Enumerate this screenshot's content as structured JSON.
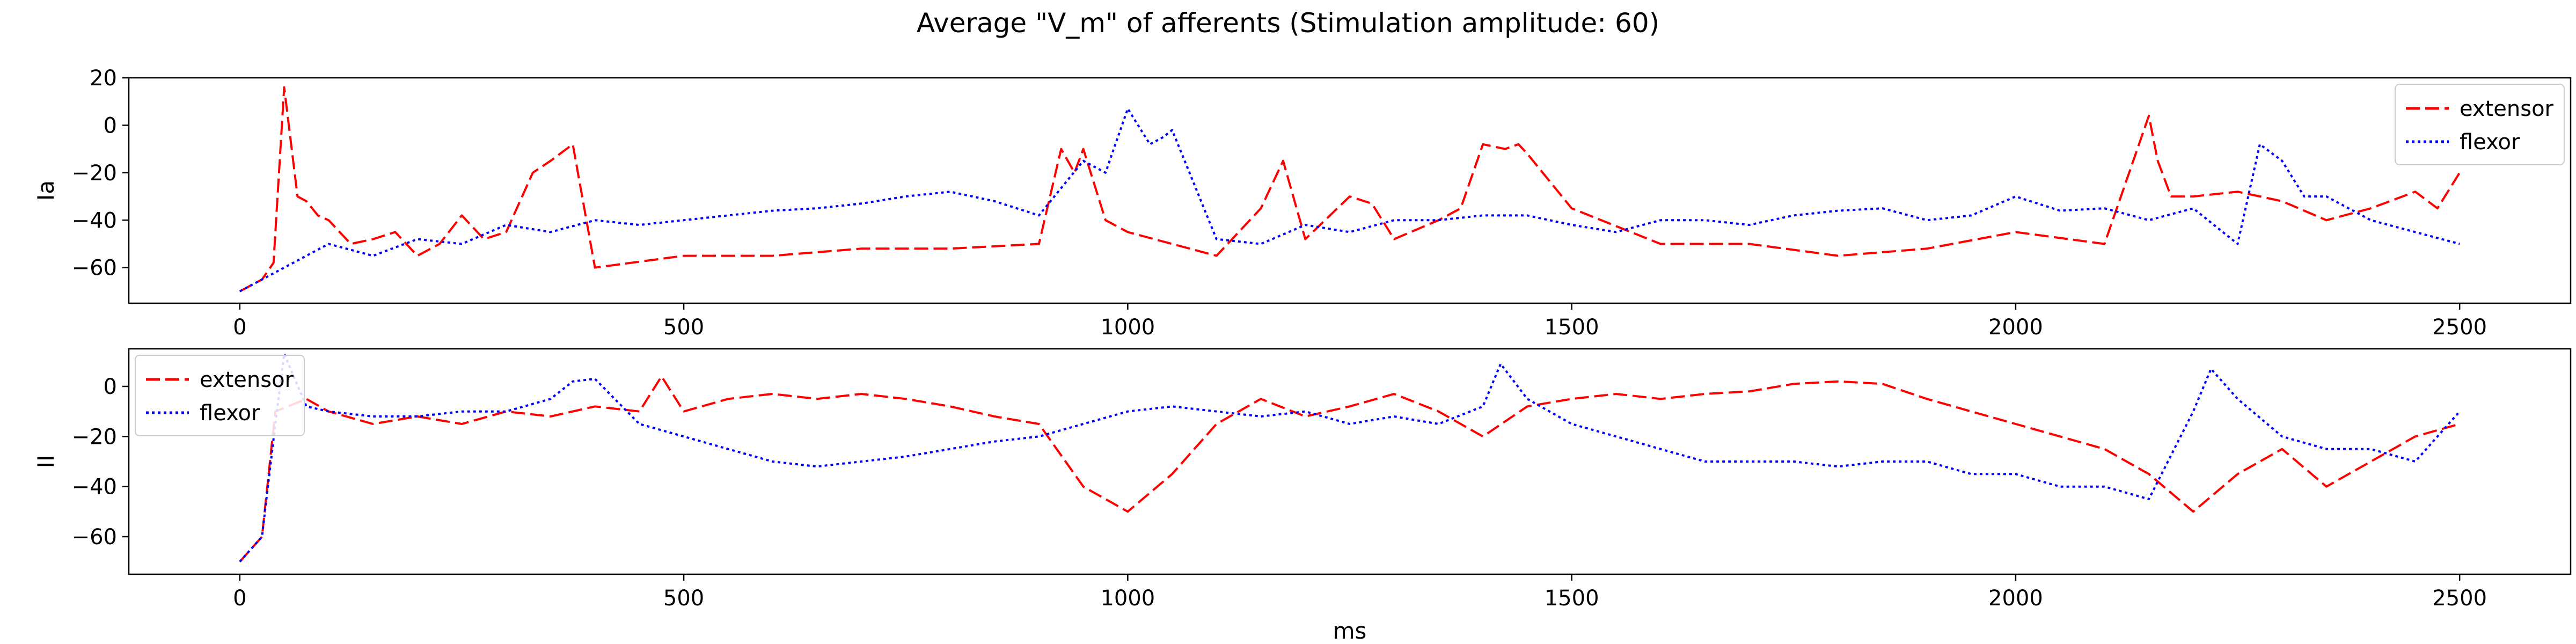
{
  "figure": {
    "title": "Average \"V_m\" of afferents (Stimulation amplitude: 60)",
    "xlabel": "ms"
  },
  "colors": {
    "extensor": "#ff0000",
    "flexor": "#0000ff"
  },
  "chart_data": [
    {
      "type": "line",
      "ylabel": "Ia",
      "xlim": [
        -125,
        2625
      ],
      "ylim": [
        -75,
        20
      ],
      "xticks": [
        0,
        500,
        1000,
        1500,
        2000,
        2500
      ],
      "xtick_labels": [
        "0",
        "500",
        "1000",
        "1500",
        "2000",
        "2500"
      ],
      "yticks": [
        20,
        0,
        -20,
        -40,
        -60
      ],
      "ytick_labels": [
        "20",
        "0",
        "−20",
        "−40",
        "−60"
      ],
      "grid": false,
      "legend": {
        "placement": "top-right",
        "entries": [
          "extensor",
          "flexor"
        ]
      },
      "series": [
        {
          "name": "extensor",
          "style": "dashed",
          "x": [
            0,
            25,
            38,
            50,
            65,
            75,
            88,
            100,
            125,
            150,
            175,
            200,
            225,
            250,
            275,
            300,
            330,
            350,
            375,
            400,
            500,
            600,
            700,
            800,
            900,
            925,
            940,
            950,
            975,
            1000,
            1050,
            1100,
            1150,
            1175,
            1200,
            1250,
            1275,
            1300,
            1350,
            1375,
            1400,
            1425,
            1440,
            1450,
            1500,
            1600,
            1700,
            1800,
            1900,
            2000,
            2100,
            2150,
            2160,
            2175,
            2200,
            2250,
            2300,
            2350,
            2400,
            2450,
            2475,
            2500
          ],
          "y": [
            -70,
            -65,
            -58,
            16,
            -30,
            -32,
            -38,
            -40,
            -50,
            -48,
            -45,
            -55,
            -50,
            -38,
            -48,
            -45,
            -20,
            -15,
            -8,
            -60,
            -55,
            -55,
            -52,
            -52,
            -50,
            -10,
            -20,
            -10,
            -40,
            -45,
            -50,
            -55,
            -35,
            -15,
            -48,
            -30,
            -33,
            -48,
            -40,
            -35,
            -8,
            -10,
            -8,
            -12,
            -35,
            -50,
            -50,
            -55,
            -52,
            -45,
            -50,
            4,
            -15,
            -30,
            -30,
            -28,
            -32,
            -40,
            -35,
            -28,
            -35,
            -20
          ]
        },
        {
          "name": "flexor",
          "style": "dotted",
          "x": [
            0,
            50,
            100,
            150,
            200,
            250,
            300,
            350,
            400,
            450,
            500,
            550,
            600,
            650,
            700,
            750,
            800,
            850,
            900,
            950,
            975,
            1000,
            1025,
            1040,
            1050,
            1100,
            1150,
            1200,
            1250,
            1300,
            1350,
            1400,
            1450,
            1500,
            1550,
            1600,
            1650,
            1700,
            1750,
            1800,
            1850,
            1900,
            1950,
            2000,
            2050,
            2100,
            2150,
            2200,
            2250,
            2275,
            2300,
            2325,
            2350,
            2400,
            2450,
            2500
          ],
          "y": [
            -70,
            -60,
            -50,
            -55,
            -48,
            -50,
            -42,
            -45,
            -40,
            -42,
            -40,
            -38,
            -36,
            -35,
            -33,
            -30,
            -28,
            -32,
            -38,
            -15,
            -20,
            7,
            -8,
            -5,
            -2,
            -48,
            -50,
            -42,
            -45,
            -40,
            -40,
            -38,
            -38,
            -42,
            -45,
            -40,
            -40,
            -42,
            -38,
            -36,
            -35,
            -40,
            -38,
            -30,
            -36,
            -35,
            -40,
            -35,
            -50,
            -8,
            -15,
            -30,
            -30,
            -40,
            -45,
            -50
          ]
        }
      ]
    },
    {
      "type": "line",
      "ylabel": "II",
      "xlim": [
        -125,
        2625
      ],
      "ylim": [
        -75,
        15
      ],
      "xticks": [
        0,
        500,
        1000,
        1500,
        2000,
        2500
      ],
      "xtick_labels": [
        "0",
        "500",
        "1000",
        "1500",
        "2000",
        "2500"
      ],
      "yticks": [
        0,
        -20,
        -40,
        -60
      ],
      "ytick_labels": [
        "0",
        "−20",
        "−40",
        "−60"
      ],
      "grid": false,
      "legend": {
        "placement": "top-left",
        "entries": [
          "extensor",
          "flexor"
        ]
      },
      "series": [
        {
          "name": "extensor",
          "style": "dashed",
          "x": [
            0,
            25,
            40,
            75,
            100,
            150,
            200,
            250,
            300,
            350,
            400,
            450,
            475,
            500,
            550,
            600,
            650,
            700,
            750,
            800,
            850,
            900,
            950,
            1000,
            1050,
            1100,
            1150,
            1200,
            1250,
            1300,
            1350,
            1400,
            1450,
            1500,
            1550,
            1600,
            1650,
            1700,
            1750,
            1800,
            1850,
            1900,
            1950,
            2000,
            2050,
            2100,
            2150,
            2200,
            2250,
            2300,
            2350,
            2400,
            2450,
            2500
          ],
          "y": [
            -70,
            -60,
            -10,
            -5,
            -10,
            -15,
            -12,
            -15,
            -10,
            -12,
            -8,
            -10,
            4,
            -10,
            -5,
            -3,
            -5,
            -3,
            -5,
            -8,
            -12,
            -15,
            -40,
            -50,
            -35,
            -15,
            -5,
            -12,
            -8,
            -3,
            -10,
            -20,
            -8,
            -5,
            -3,
            -5,
            -3,
            -2,
            1,
            2,
            1,
            -5,
            -10,
            -15,
            -20,
            -25,
            -35,
            -50,
            -35,
            -25,
            -40,
            -30,
            -20,
            -15
          ]
        },
        {
          "name": "flexor",
          "style": "dotted",
          "x": [
            0,
            25,
            40,
            50,
            75,
            100,
            150,
            200,
            250,
            300,
            350,
            375,
            400,
            450,
            500,
            550,
            600,
            650,
            700,
            750,
            800,
            850,
            900,
            950,
            1000,
            1050,
            1100,
            1150,
            1200,
            1250,
            1300,
            1350,
            1400,
            1420,
            1450,
            1500,
            1550,
            1600,
            1650,
            1700,
            1750,
            1800,
            1850,
            1900,
            1950,
            2000,
            2050,
            2100,
            2150,
            2200,
            2220,
            2250,
            2300,
            2350,
            2400,
            2450,
            2500
          ],
          "y": [
            -70,
            -60,
            -15,
            13,
            -8,
            -10,
            -12,
            -12,
            -10,
            -10,
            -5,
            2,
            3,
            -15,
            -20,
            -25,
            -30,
            -32,
            -30,
            -28,
            -25,
            -22,
            -20,
            -15,
            -10,
            -8,
            -10,
            -12,
            -10,
            -15,
            -12,
            -15,
            -8,
            9,
            -5,
            -15,
            -20,
            -25,
            -30,
            -30,
            -30,
            -32,
            -30,
            -30,
            -35,
            -35,
            -40,
            -40,
            -45,
            -10,
            7,
            -5,
            -20,
            -25,
            -25,
            -30,
            -10
          ]
        }
      ]
    }
  ]
}
